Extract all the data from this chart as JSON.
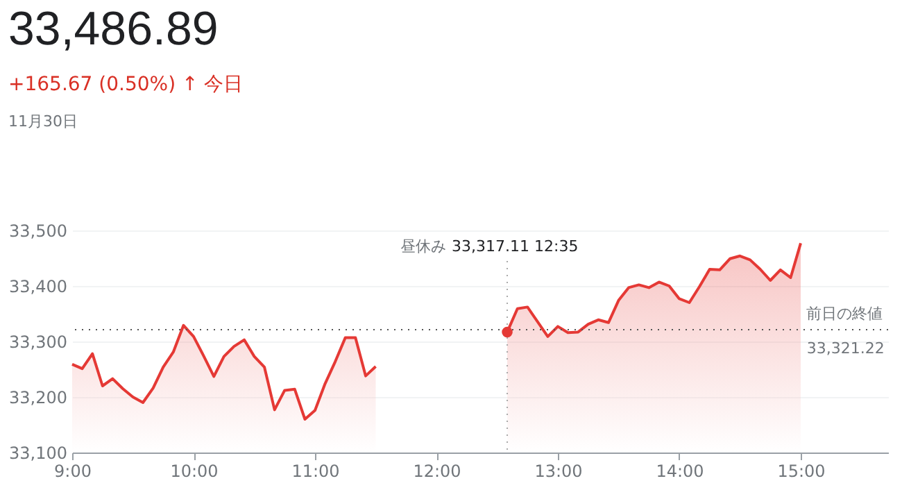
{
  "chart_data": {
    "type": "area",
    "title": "33,486.89",
    "subtitle": "+165.67 (0.50%) ↑ 今日",
    "annotations": [
      "11月30日",
      "昼休み",
      "33,317.11  12:35",
      {
        "text": "33,321.22",
        "x": 15.05,
        "y": 33321.22
      }
    ],
    "x": [
      9.0,
      9.083,
      9.167,
      9.25,
      9.333,
      9.417,
      9.5,
      9.583,
      9.667,
      9.75,
      9.833,
      9.917,
      10.0,
      10.083,
      10.167,
      10.25,
      10.333,
      10.417,
      10.5,
      10.583,
      10.667,
      10.75,
      10.833,
      10.917,
      11.0,
      11.083,
      11.167,
      11.25,
      11.333,
      11.417,
      11.5,
      12.0,
      12.583,
      12.667,
      12.75,
      12.917,
      13.0,
      13.083,
      13.167,
      13.25,
      13.333,
      13.417,
      13.5,
      13.583,
      13.667,
      13.75,
      13.833,
      13.917,
      14.0,
      14.083,
      14.167,
      14.25,
      14.333,
      14.417,
      14.5,
      14.583,
      14.667,
      14.75,
      14.833,
      14.917,
      15.0
    ],
    "series": [
      {
        "color": "#e53935",
        "values": [
          33259,
          33251,
          33278,
          33220,
          33233,
          33215,
          33200,
          33190,
          33216,
          33254,
          33281,
          33329,
          33309,
          33274,
          33237,
          33273,
          33291,
          33303,
          33273,
          33254,
          33177,
          33212,
          33214,
          33160,
          33176,
          33224,
          33264,
          33307,
          33307,
          33238,
          33255,
          null,
          33317,
          33359,
          33362,
          33309,
          33327,
          33316,
          33317,
          33331,
          33339,
          33334,
          33374,
          33397,
          33402,
          33397,
          33407,
          33400,
          33377,
          33370,
          33399,
          33430,
          33429,
          33449,
          33454,
          33447,
          33430,
          33410,
          33429,
          33415,
          33477
        ]
      }
    ],
    "xlim": [
      9,
      15.72
    ],
    "xticks": [
      {
        "value": 9,
        "label": "9:00"
      },
      {
        "value": 10,
        "label": "10:00"
      },
      {
        "value": 11,
        "label": "11:00"
      },
      {
        "value": 12,
        "label": "12:00"
      },
      {
        "value": 13,
        "label": "13:00"
      },
      {
        "value": 14,
        "label": "14:00"
      },
      {
        "value": 15,
        "label": "15:00"
      }
    ],
    "ylim": [
      33100,
      33500
    ],
    "yticks": [
      {
        "value": 33100,
        "label": "33,100"
      },
      {
        "value": 33200,
        "label": "33,200"
      },
      {
        "value": 33300,
        "label": "33,300"
      },
      {
        "value": 33400,
        "label": "33,400"
      },
      {
        "value": 33500,
        "label": "33,500"
      }
    ],
    "grid": "y",
    "marker": "none",
    "line_style": "solid",
    "ref_lines": [
      {
        "axis": "y",
        "value": 33321.22,
        "label": "前日の終値",
        "line_style": "dotted",
        "color": "#555555"
      },
      {
        "axis": "x",
        "value": 12.583,
        "line_style": "dotted",
        "color": "#aaaaaa"
      }
    ]
  }
}
